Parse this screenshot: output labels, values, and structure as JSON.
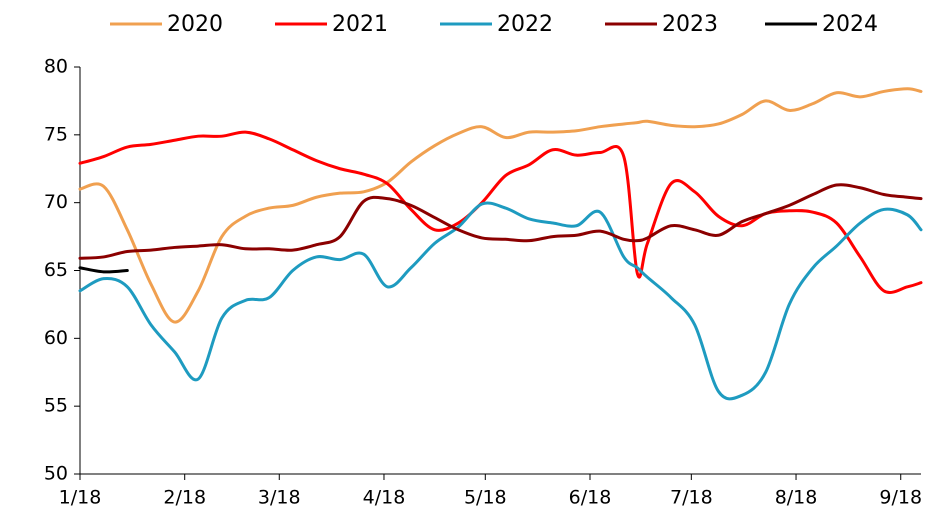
{
  "chart_data": {
    "type": "line",
    "x": [
      18,
      25,
      32,
      39,
      46,
      53,
      60,
      67,
      74,
      81,
      88,
      95,
      102,
      109,
      116,
      123,
      130,
      137,
      144,
      151,
      158,
      165,
      172,
      179,
      183,
      186,
      193,
      200,
      207,
      214,
      221,
      228,
      235,
      242,
      249,
      256,
      263,
      267
    ],
    "xlim": [
      18,
      267
    ],
    "xticks": [
      {
        "value": 18,
        "label": "1/18"
      },
      {
        "value": 49,
        "label": "2/18"
      },
      {
        "value": 77,
        "label": "3/18"
      },
      {
        "value": 108,
        "label": "4/18"
      },
      {
        "value": 138,
        "label": "5/18"
      },
      {
        "value": 169,
        "label": "6/18"
      },
      {
        "value": 199,
        "label": "7/18"
      },
      {
        "value": 230,
        "label": "8/18"
      },
      {
        "value": 261,
        "label": "9/18"
      }
    ],
    "ylim": [
      50,
      80
    ],
    "yticks": [
      50,
      55,
      60,
      65,
      70,
      75,
      80
    ],
    "legend": "top",
    "series": [
      {
        "name": "2020",
        "color": "#f0a050",
        "values": [
          71,
          71.2,
          68,
          64,
          61.2,
          63.5,
          67.5,
          69,
          69.6,
          69.8,
          70.4,
          70.7,
          70.8,
          71.5,
          73,
          74.2,
          75.1,
          75.6,
          74.8,
          75.2,
          75.2,
          75.3,
          75.6,
          75.8,
          75.9,
          76,
          75.7,
          75.6,
          75.8,
          76.5,
          77.5,
          76.8,
          77.3,
          78.1,
          77.8,
          78.2,
          78.4,
          78.2
        ]
      },
      {
        "name": "2021",
        "color": "#ff0000",
        "values": [
          72.9,
          73.4,
          74.1,
          74.3,
          74.6,
          74.9,
          74.9,
          75.2,
          74.7,
          73.9,
          73.1,
          72.5,
          72.1,
          71.4,
          69.5,
          68,
          68.5,
          70,
          72,
          72.8,
          73.9,
          73.5,
          73.7,
          73.4,
          64.8,
          67,
          71.4,
          70.8,
          69,
          68.3,
          69.2,
          69.4,
          69.3,
          68.5,
          66,
          63.5,
          63.8,
          64.1
        ]
      },
      {
        "name": "2022",
        "color": "#1e9bc0",
        "values": [
          63.5,
          64.4,
          63.8,
          61,
          59,
          57,
          61.5,
          62.8,
          63,
          65,
          66,
          65.8,
          66.2,
          63.8,
          65.2,
          67,
          68.2,
          69.9,
          69.6,
          68.8,
          68.5,
          68.3,
          69.3,
          66,
          65.2,
          64.5,
          63,
          61,
          56.1,
          55.8,
          57.5,
          62.5,
          65.2,
          66.8,
          68.5,
          69.5,
          69.1,
          68
        ]
      },
      {
        "name": "2023",
        "color": "#8b0000",
        "values": [
          65.9,
          66,
          66.4,
          66.5,
          66.7,
          66.8,
          66.9,
          66.6,
          66.6,
          66.5,
          66.9,
          67.5,
          70.1,
          70.3,
          69.8,
          68.9,
          68,
          67.4,
          67.3,
          67.2,
          67.5,
          67.6,
          67.9,
          67.3,
          67.2,
          67.4,
          68.3,
          68,
          67.6,
          68.6,
          69.2,
          69.8,
          70.6,
          71.3,
          71.1,
          70.6,
          70.4,
          70.3
        ]
      },
      {
        "name": "2024",
        "color": "#000000",
        "values": [
          65.2,
          64.9,
          65,
          null,
          null,
          null,
          null,
          null,
          null,
          null,
          null,
          null,
          null,
          null,
          null,
          null,
          null,
          null,
          null,
          null,
          null,
          null,
          null,
          null,
          null,
          null,
          null,
          null,
          null,
          null,
          null,
          null,
          null,
          null,
          null,
          null,
          null,
          null
        ]
      }
    ]
  }
}
